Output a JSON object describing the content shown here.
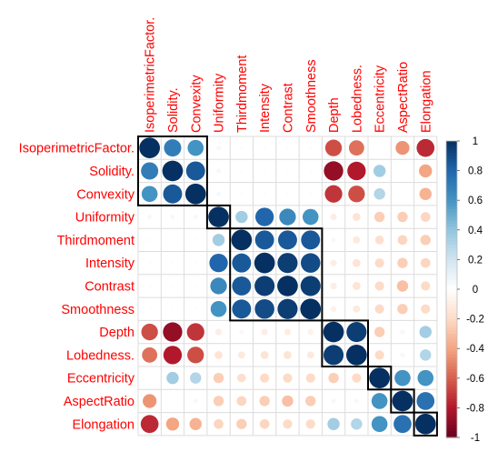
{
  "chart_data": {
    "type": "heatmap",
    "variables": [
      "IsoperimetricFactor.",
      "Solidity.",
      "Convexity",
      "Uniformity",
      "Thirdmoment",
      "Intensity",
      "Contrast",
      "Smoothness",
      "Depth",
      "Lobedness.",
      "Eccentricity",
      "AspectRatio",
      "Elongation"
    ],
    "matrix": [
      [
        1.0,
        0.7,
        0.6,
        0.05,
        0.02,
        0.02,
        0.02,
        0.02,
        -0.65,
        -0.55,
        0.0,
        -0.45,
        -0.75
      ],
      [
        0.7,
        1.0,
        0.85,
        0.05,
        0.02,
        0.02,
        0.02,
        0.02,
        -0.88,
        -0.8,
        0.35,
        0.0,
        -0.4
      ],
      [
        0.6,
        0.85,
        1.0,
        0.05,
        0.02,
        0.02,
        0.02,
        0.02,
        -0.72,
        -0.65,
        0.3,
        0.0,
        -0.35
      ],
      [
        0.05,
        0.05,
        0.05,
        1.0,
        0.35,
        0.8,
        0.65,
        0.6,
        -0.1,
        -0.15,
        -0.25,
        -0.25,
        -0.22
      ],
      [
        0.02,
        0.02,
        0.02,
        0.35,
        1.0,
        0.85,
        0.85,
        0.85,
        -0.05,
        -0.12,
        -0.18,
        -0.22,
        -0.25
      ],
      [
        0.02,
        0.02,
        0.02,
        0.8,
        0.85,
        1.0,
        0.95,
        0.9,
        -0.1,
        -0.15,
        -0.2,
        -0.25,
        -0.22
      ],
      [
        0.02,
        0.02,
        0.02,
        0.65,
        0.85,
        0.95,
        1.0,
        0.95,
        -0.1,
        -0.15,
        -0.2,
        -0.3,
        -0.2
      ],
      [
        0.02,
        0.02,
        0.02,
        0.6,
        0.85,
        0.9,
        0.95,
        1.0,
        -0.08,
        -0.12,
        -0.2,
        -0.25,
        -0.2
      ],
      [
        -0.65,
        -0.88,
        -0.72,
        -0.1,
        -0.05,
        -0.1,
        -0.1,
        -0.08,
        1.0,
        0.95,
        -0.25,
        0.05,
        0.35
      ],
      [
        -0.55,
        -0.8,
        -0.65,
        -0.15,
        -0.12,
        -0.15,
        -0.15,
        -0.12,
        0.95,
        1.0,
        -0.2,
        0.05,
        0.3
      ],
      [
        0.0,
        0.35,
        0.3,
        -0.25,
        -0.18,
        -0.2,
        -0.2,
        -0.2,
        -0.25,
        -0.2,
        1.0,
        0.6,
        0.6
      ],
      [
        -0.45,
        0.0,
        0.05,
        -0.25,
        -0.22,
        -0.25,
        -0.3,
        -0.25,
        0.05,
        0.05,
        0.6,
        1.0,
        0.75
      ],
      [
        -0.75,
        -0.4,
        -0.35,
        -0.22,
        -0.25,
        -0.22,
        -0.2,
        -0.2,
        0.35,
        0.3,
        0.6,
        0.75,
        1.0
      ]
    ],
    "clusters": [
      [
        0,
        2
      ],
      [
        3,
        3
      ],
      [
        4,
        7
      ],
      [
        8,
        9
      ],
      [
        10,
        10
      ],
      [
        11,
        11
      ],
      [
        12,
        12
      ]
    ],
    "colorbar": {
      "range": [
        -1,
        1
      ],
      "ticks": [
        "1",
        "0.8",
        "0.6",
        "0.4",
        "0.2",
        "0",
        "-0.2",
        "-0.4",
        "-0.6",
        "-0.8",
        "-1"
      ],
      "palette": [
        "#67001f",
        "#b2182b",
        "#d6604d",
        "#f4a582",
        "#fddbc7",
        "#ffffff",
        "#d1e5f0",
        "#92c5de",
        "#4393c3",
        "#2166ac",
        "#053061"
      ]
    },
    "label_color": "#ff0000",
    "grid": true
  }
}
